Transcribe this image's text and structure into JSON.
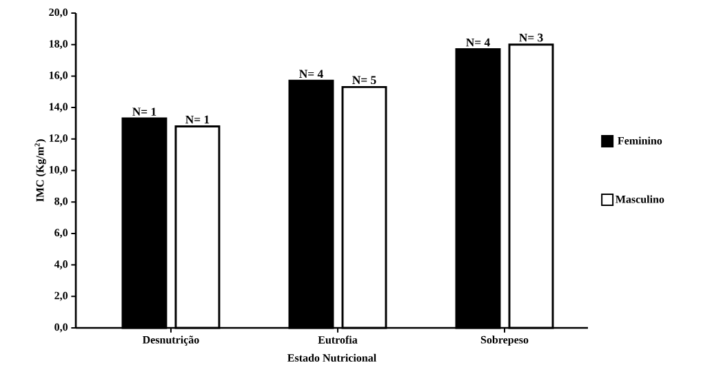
{
  "chart_data": {
    "type": "bar",
    "xlabel": "Estado Nutricional",
    "ylabel": "IMC  (Kg/m$^{2}$)",
    "categories": [
      "Desnutrição",
      "Eutrofia",
      "Sobrepeso"
    ],
    "series": [
      {
        "name": "Feminino",
        "color": "#000000",
        "values": [
          13.3,
          15.7,
          17.7
        ]
      },
      {
        "name": "Masculino",
        "color": "#ffffff",
        "values": [
          12.8,
          15.3,
          18.0
        ]
      }
    ],
    "annotations": [
      "N= 1",
      "N= 1",
      "N= 4",
      "N= 5",
      "N= 4",
      "N= 3"
    ],
    "ylim": [
      0,
      20
    ],
    "yticks": [
      {
        "value": 0,
        "label": "0,0"
      },
      {
        "value": 2,
        "label": "2,0"
      },
      {
        "value": 4,
        "label": "4,0"
      },
      {
        "value": 6,
        "label": "6,0"
      },
      {
        "value": 8,
        "label": "8,0"
      },
      {
        "value": 10,
        "label": "10,0"
      },
      {
        "value": 12,
        "label": "12,0"
      },
      {
        "value": 14,
        "label": "14,0"
      },
      {
        "value": 16,
        "label": "16,0"
      },
      {
        "value": 18,
        "label": "18,0"
      },
      {
        "value": 20,
        "label": "20,0"
      }
    ],
    "grid": false,
    "legend": "right"
  }
}
